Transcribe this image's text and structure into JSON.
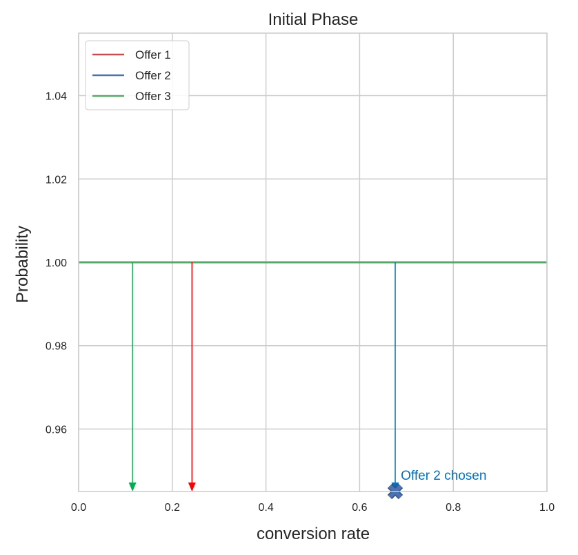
{
  "chart_data": {
    "type": "line",
    "title": "Initial Phase",
    "xlabel": "conversion rate",
    "ylabel": "Probability",
    "xlim": [
      0.0,
      1.0
    ],
    "ylim": [
      0.945,
      1.055
    ],
    "xticks": [
      "0.0",
      "0.2",
      "0.4",
      "0.6",
      "0.8",
      "1.0"
    ],
    "yticks": [
      "0.96",
      "0.98",
      "1.00",
      "1.02",
      "1.04"
    ],
    "grid": true,
    "legend_position": "top-left",
    "series": [
      {
        "name": "Offer 1",
        "color": "#c44e52",
        "x": [
          0.0,
          1.0
        ],
        "y": [
          1.0,
          1.0
        ]
      },
      {
        "name": "Offer 2",
        "color": "#4c72b0",
        "x": [
          0.0,
          1.0
        ],
        "y": [
          1.0,
          1.0
        ]
      },
      {
        "name": "Offer 3",
        "color": "#55a868",
        "x": [
          0.0,
          1.0
        ],
        "y": [
          1.0,
          1.0
        ]
      }
    ],
    "arrows": [
      {
        "x": 0.115,
        "y_from": 1.0,
        "y_to": 0.945,
        "color": "#00b050"
      },
      {
        "x": 0.242,
        "y_from": 1.0,
        "y_to": 0.945,
        "color": "#ff0000"
      },
      {
        "x": 0.676,
        "y_from": 1.0,
        "y_to": 0.945,
        "color": "#0070c0"
      }
    ],
    "marker": {
      "x": 0.676,
      "y": 0.945,
      "symbol": "X",
      "color": "#4c72b0"
    },
    "annotation": {
      "text": "Offer 2 chosen",
      "x": 0.688,
      "y": 0.949,
      "color": "#0070c0"
    }
  }
}
